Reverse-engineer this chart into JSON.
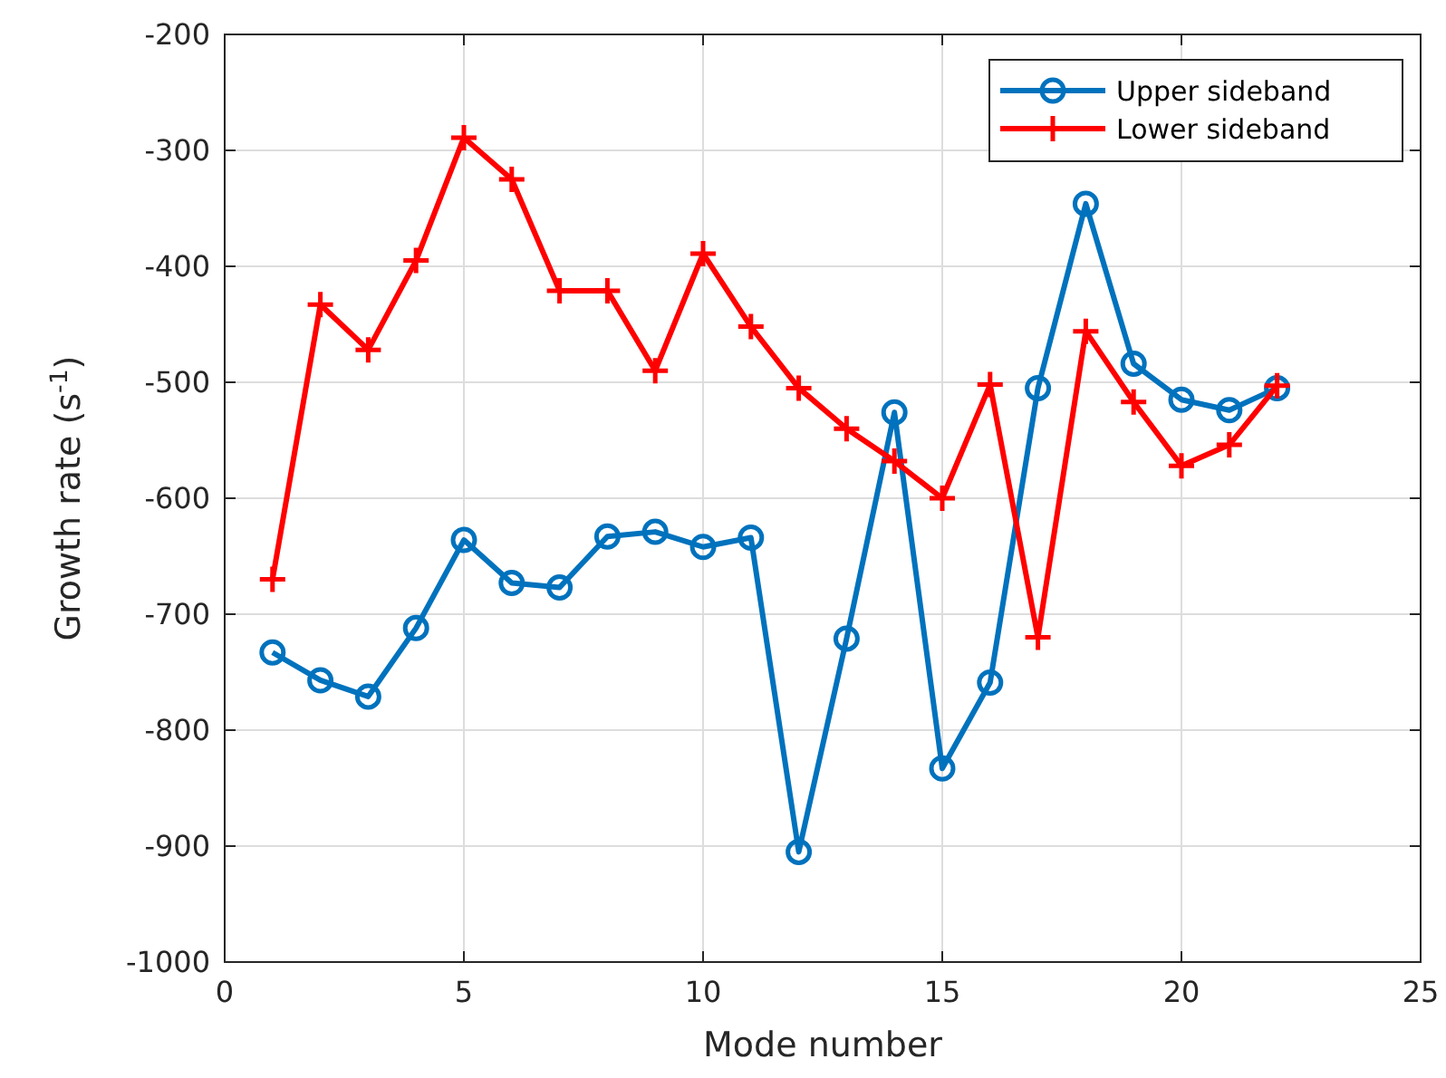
{
  "chart_data": {
    "type": "line",
    "xlabel": "Mode number",
    "ylabel": "Growth rate (s$^{-1}$)",
    "x": [
      1,
      2,
      3,
      4,
      5,
      6,
      7,
      8,
      9,
      10,
      11,
      12,
      13,
      14,
      15,
      16,
      17,
      18,
      19,
      20,
      21,
      22
    ],
    "series": [
      {
        "name": "Upper sideband",
        "color": "#0072bd",
        "marker": "circle",
        "values": [
          -733,
          -757,
          -771,
          -712,
          -636,
          -673,
          -677,
          -633,
          -629,
          -642,
          -634,
          -905,
          -721,
          -526,
          -833,
          -759,
          -505,
          -346,
          -484,
          -515,
          -524,
          -505
        ]
      },
      {
        "name": "Lower sideband",
        "color": "#ff0000",
        "marker": "cross",
        "values": [
          -670,
          -433,
          -472,
          -395,
          -289,
          -325,
          -421,
          -421,
          -490,
          -389,
          -452,
          -505,
          -540,
          -568,
          -600,
          -502,
          -720,
          -456,
          -517,
          -572,
          -554,
          -503
        ]
      }
    ],
    "xlim": [
      0,
      25
    ],
    "xticks": [
      0,
      5,
      10,
      15,
      20,
      25
    ],
    "ylim": [
      -1000,
      -200
    ],
    "yticks": [
      -1000,
      -900,
      -800,
      -700,
      -600,
      -500,
      -400,
      -300,
      -200
    ],
    "grid": true,
    "legend": "top right",
    "line_style": "solid"
  }
}
